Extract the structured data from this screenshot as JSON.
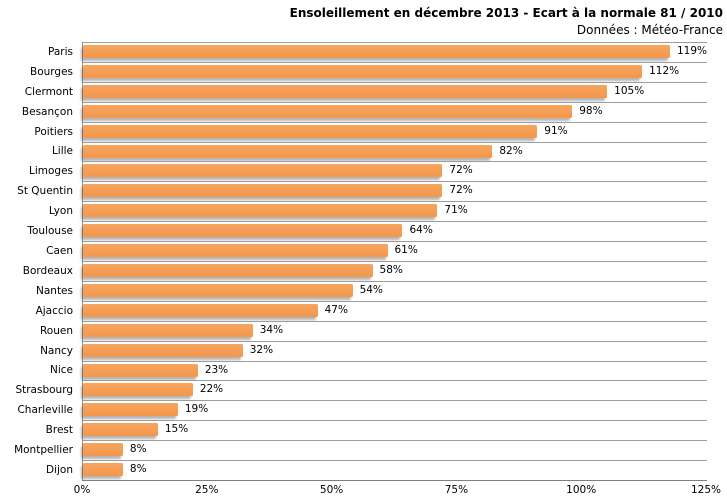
{
  "header": {
    "title": "Ensoleillement en décembre 2013 - Ecart à la normale 81 / 2010",
    "subtitle": "Données : Météo-France"
  },
  "chart_data": {
    "type": "bar",
    "orientation": "horizontal",
    "title": "Ensoleillement en décembre 2013 - Ecart à la normale 81 / 2010",
    "subtitle": "Données : Météo-France",
    "categories": [
      "Paris",
      "Bourges",
      "Clermont",
      "Besançon",
      "Poitiers",
      "Lille",
      "Limoges",
      "St Quentin",
      "Lyon",
      "Toulouse",
      "Caen",
      "Bordeaux",
      "Nantes",
      "Ajaccio",
      "Rouen",
      "Nancy",
      "Nice",
      "Strasbourg",
      "Charleville",
      "Brest",
      "Montpellier",
      "Dijon"
    ],
    "values": [
      119,
      112,
      105,
      98,
      91,
      82,
      72,
      72,
      71,
      64,
      61,
      58,
      54,
      47,
      34,
      32,
      23,
      22,
      19,
      15,
      8,
      8
    ],
    "value_labels": [
      "119%",
      "112%",
      "105%",
      "98%",
      "91%",
      "82%",
      "72%",
      "72%",
      "71%",
      "64%",
      "61%",
      "58%",
      "54%",
      "47%",
      "34%",
      "32%",
      "23%",
      "22%",
      "19%",
      "15%",
      "8%",
      "8%"
    ],
    "x_ticks": [
      "0%",
      "25%",
      "50%",
      "75%",
      "100%",
      "125%"
    ],
    "xlim": [
      0,
      125
    ],
    "xlabel": "",
    "ylabel": "",
    "legend": "none",
    "grid": "horizontal category separator lines only, no vertical gridlines",
    "bar_color": "#F49C54",
    "gridline_color": "#9D9D9D",
    "axis_color": "#8C8C8C",
    "text_color": "#000000",
    "background_color": "#FFFFFF"
  }
}
